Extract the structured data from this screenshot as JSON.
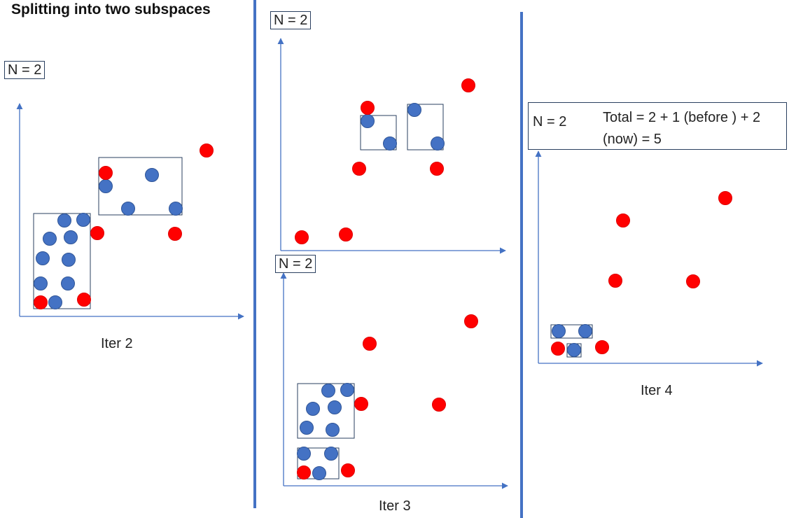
{
  "title": "Splitting into two subspaces",
  "n_label": "N = 2",
  "panels": {
    "iter2": {
      "caption": "Iter 2"
    },
    "iter3": {
      "caption": "Iter 3"
    },
    "iter4": {
      "caption": "Iter 4"
    }
  },
  "total": {
    "n_label": "N = 2",
    "text": "Total = 2 + 1 (before ) + 2 (now) = 5"
  },
  "colors": {
    "blue_point": "#4472c4",
    "red_point": "#ff0000",
    "axis": "#4472c4",
    "divider": "#4472c4",
    "box_border": "#2a3f5f"
  }
}
